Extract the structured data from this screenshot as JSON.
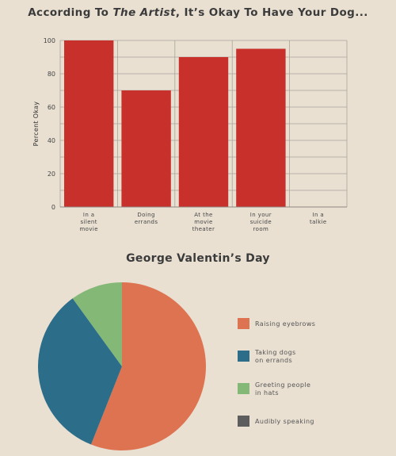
{
  "chart_data": [
    {
      "type": "bar",
      "title_parts": {
        "prefix": "According To ",
        "italic": "The Artist",
        "suffix": ", It’s Okay To Have Your Dog..."
      },
      "ylabel": "Percent Okay",
      "ylim": [
        0,
        100
      ],
      "yticks": [
        0,
        20,
        40,
        60,
        80,
        100
      ],
      "grid": true,
      "categories": [
        [
          "In a",
          "silent",
          "movie"
        ],
        [
          "Doing",
          "errands"
        ],
        [
          "At the",
          "movie",
          "theater"
        ],
        [
          "In your",
          "suicide",
          "room"
        ],
        [
          "In a",
          "talkie"
        ]
      ],
      "values": [
        100,
        70,
        90,
        95,
        0
      ],
      "colors": {
        "bar": "#c8302b"
      }
    },
    {
      "type": "pie",
      "title": "George Valentin’s Day",
      "slices": [
        {
          "label": [
            "Raising eyebrows"
          ],
          "value": 56,
          "color": "#de7352"
        },
        {
          "label": [
            "Taking dogs",
            "on errands"
          ],
          "value": 34,
          "color": "#2c6d8a"
        },
        {
          "label": [
            "Greeting people",
            "in hats"
          ],
          "value": 10,
          "color": "#84b876"
        },
        {
          "label": [
            "Audibly speaking"
          ],
          "value": 0,
          "color": "#5d5d5d"
        }
      ]
    }
  ]
}
